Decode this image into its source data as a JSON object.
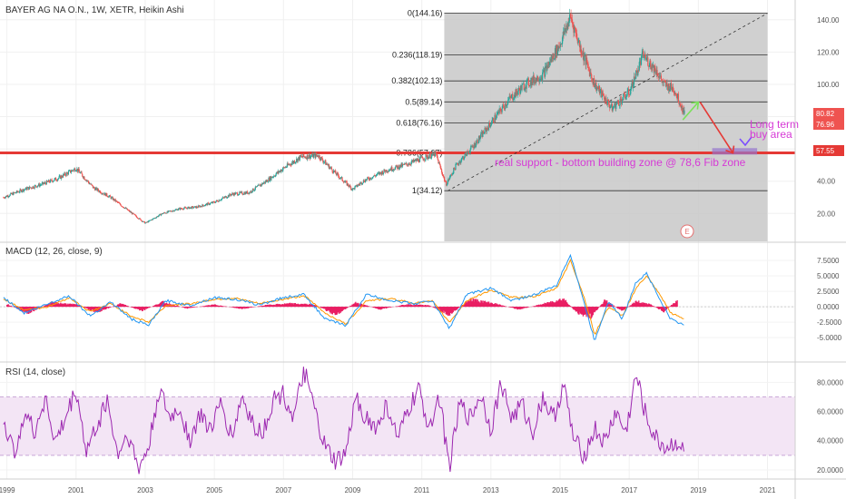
{
  "header": {
    "symbol_line": "BAYER AG NA O.N., 1W, XETR, Heikin Ashi",
    "macd_label": "MACD (12, 26, close, 9)",
    "rsi_label": "RSI (14, close)"
  },
  "colors": {
    "up": "#26a69a",
    "down": "#ef5350",
    "macd_line": "#2196f3",
    "signal_line": "#ff9800",
    "histogram": "#e91e63",
    "rsi_line": "#9c27b0",
    "rsi_band": "#f3e5f5",
    "support_line": "#e53935",
    "fib_zone": "#c8c8c8",
    "annotation": "#d63ad6"
  },
  "annotations": {
    "support_text": "real support - bottom building zone @ 78,6 Fib zone",
    "buy_area_line1": "Long term",
    "buy_area_line2": "buy area",
    "event_marker": "E"
  },
  "price_badges": {
    "last_price": "80.82",
    "second_price": "76.96",
    "support_price": "57.55"
  },
  "chart_data": [
    {
      "type": "candlestick",
      "title": "BAYER AG NA O.N., 1W, XETR, Heikin Ashi",
      "ylim": [
        5,
        150
      ],
      "y_ticks": [
        20,
        40,
        60,
        80,
        100,
        120,
        140
      ],
      "y_tick_labels": [
        "20.00",
        "40.00",
        "60.00",
        "80.00",
        "100.00",
        "120.00",
        "140.00"
      ],
      "x_ticks": [
        1999,
        2001,
        2003,
        2005,
        2007,
        2009,
        2011,
        2013,
        2015,
        2017,
        2019,
        2021
      ],
      "xlim": [
        1998.8,
        2021.8
      ],
      "price_path": {
        "x": [
          1998.9,
          1999.5,
          2000.0,
          2000.5,
          2001.0,
          2001.5,
          2002.0,
          2002.5,
          2003.0,
          2003.5,
          2004.0,
          2004.5,
          2005.0,
          2005.5,
          2006.0,
          2006.5,
          2007.0,
          2007.5,
          2008.0,
          2008.5,
          2009.0,
          2009.3,
          2009.7,
          2010.0,
          2010.5,
          2011.0,
          2011.4,
          2011.7,
          2012.0,
          2012.5,
          2013.0,
          2013.5,
          2014.0,
          2014.5,
          2015.0,
          2015.3,
          2015.6,
          2016.0,
          2016.5,
          2017.0,
          2017.4,
          2017.8,
          2018.0,
          2018.3,
          2018.6
        ],
        "y": [
          30,
          35,
          38,
          42,
          48,
          36,
          30,
          22,
          14,
          20,
          23,
          24,
          27,
          32,
          33,
          40,
          48,
          55,
          56,
          45,
          35,
          40,
          44,
          47,
          50,
          54,
          57,
          38,
          50,
          62,
          76,
          90,
          100,
          106,
          125,
          142,
          122,
          100,
          85,
          95,
          118,
          108,
          100,
          97,
          82
        ]
      },
      "fibonacci_levels": [
        {
          "ratio": "0",
          "price": 144.16
        },
        {
          "ratio": "0.236",
          "price": 118.19
        },
        {
          "ratio": "0.382",
          "price": 102.13
        },
        {
          "ratio": "0.5",
          "price": 89.14
        },
        {
          "ratio": "0.618",
          "price": 76.16
        },
        {
          "ratio": "0.786",
          "price": 57.67
        },
        {
          "ratio": "1",
          "price": 34.12
        }
      ],
      "fibonacci_labels": [
        "0(144.16)",
        "0.236(118.19)",
        "0.382(102.13)",
        "0.5(89.14)",
        "0.618(76.16)",
        "0.786(57.67)",
        "1(34.12)"
      ],
      "fib_range": [
        2011.65,
        2021.0
      ],
      "support_level": 57.55,
      "trendline": {
        "x": [
          2011.75,
          2021.0
        ],
        "y": [
          34.0,
          144.0
        ]
      },
      "projection_up": {
        "x": [
          2018.55,
          2019.0
        ],
        "y": [
          78,
          89
        ]
      },
      "projection_down": {
        "x": [
          2019.05,
          2020.0
        ],
        "y": [
          89,
          57.5
        ]
      },
      "buy_zone": {
        "x": [
          2019.4,
          2020.7
        ],
        "y": [
          56.5,
          60.5
        ]
      }
    },
    {
      "type": "line",
      "title": "MACD (12, 26, close, 9)",
      "ylim": [
        -8.5,
        10
      ],
      "y_ticks": [
        7.5,
        5,
        2.5,
        0,
        -2.5,
        -5
      ],
      "y_tick_labels": [
        "7.5000",
        "5.0000",
        "2.5000",
        "0.0000",
        "-2.5000",
        "-5.0000"
      ],
      "macd": {
        "x": [
          1998.9,
          1999.5,
          2000.2,
          2000.8,
          2001.4,
          2002.0,
          2002.6,
          2003.1,
          2003.6,
          2004.3,
          2005.0,
          2005.6,
          2006.3,
          2007.0,
          2007.6,
          2008.2,
          2008.8,
          2009.4,
          2010.1,
          2010.8,
          2011.3,
          2011.8,
          2012.3,
          2013.0,
          2013.6,
          2014.3,
          2014.9,
          2015.3,
          2015.7,
          2016.0,
          2016.4,
          2016.8,
          2017.2,
          2017.5,
          2017.9,
          2018.2,
          2018.6
        ],
        "y": [
          1.5,
          -1.0,
          0.5,
          1.8,
          -1.5,
          0.8,
          -2.0,
          -3.0,
          1.0,
          0.2,
          1.5,
          1.2,
          0.3,
          1.5,
          2.0,
          -2.0,
          -3.0,
          2.0,
          1.0,
          0.5,
          1.0,
          -3.5,
          2.0,
          3.0,
          1.0,
          2.0,
          3.5,
          8.5,
          0.5,
          -5.5,
          1.0,
          -2.0,
          4.0,
          5.5,
          1.0,
          -2.0,
          -3.0
        ]
      },
      "signal": {
        "x": [
          1998.9,
          1999.5,
          2000.2,
          2000.8,
          2001.4,
          2002.0,
          2002.6,
          2003.1,
          2003.6,
          2004.3,
          2005.0,
          2005.6,
          2006.3,
          2007.0,
          2007.6,
          2008.2,
          2008.8,
          2009.4,
          2010.1,
          2010.8,
          2011.3,
          2011.8,
          2012.3,
          2013.0,
          2013.6,
          2014.3,
          2014.9,
          2015.3,
          2015.7,
          2016.0,
          2016.4,
          2016.8,
          2017.2,
          2017.5,
          2017.9,
          2018.2,
          2018.6
        ],
        "y": [
          1.2,
          -0.5,
          0.0,
          1.5,
          -0.8,
          0.5,
          -1.5,
          -2.5,
          0.2,
          0.5,
          1.2,
          1.4,
          0.5,
          1.2,
          1.8,
          -1.0,
          -2.8,
          1.0,
          1.3,
          0.6,
          0.9,
          -2.5,
          1.0,
          2.7,
          1.5,
          1.7,
          3.0,
          7.5,
          1.5,
          -4.5,
          0.0,
          -1.5,
          3.0,
          5.0,
          1.8,
          -1.0,
          -2.0
        ]
      },
      "histogram": {
        "x": [
          1999.0,
          1999.6,
          2000.3,
          2001.0,
          2001.6,
          2002.3,
          2002.9,
          2003.5,
          2004.2,
          2005.0,
          2005.8,
          2006.5,
          2007.2,
          2007.9,
          2008.5,
          2009.1,
          2009.8,
          2010.5,
          2011.2,
          2011.8,
          2012.4,
          2013.1,
          2013.8,
          2014.5,
          2015.1,
          2015.5,
          2015.9,
          2016.3,
          2016.8,
          2017.2,
          2017.6,
          2018.0,
          2018.4
        ],
        "y": [
          0.5,
          -1.2,
          0.8,
          0.4,
          -1.0,
          0.6,
          -0.8,
          0.9,
          -0.3,
          0.4,
          -0.4,
          0.3,
          0.6,
          0.4,
          -1.5,
          0.8,
          -0.5,
          0.4,
          0.3,
          -1.5,
          1.4,
          0.6,
          -0.5,
          0.5,
          1.5,
          -1.2,
          -1.8,
          1.2,
          -0.8,
          1.0,
          0.5,
          -0.9,
          1.3
        ]
      }
    },
    {
      "type": "line",
      "title": "RSI (14, close)",
      "ylim": [
        15,
        92
      ],
      "y_ticks": [
        80,
        60,
        40,
        20
      ],
      "y_tick_labels": [
        "80.0000",
        "60.0000",
        "40.0000",
        "20.0000"
      ],
      "band": [
        30,
        70
      ],
      "rsi": {
        "x": [
          1998.9,
          1999.2,
          1999.5,
          1999.8,
          2000.1,
          2000.4,
          2000.7,
          2001.0,
          2001.3,
          2001.6,
          2001.9,
          2002.2,
          2002.5,
          2002.8,
          2003.1,
          2003.4,
          2003.7,
          2004.0,
          2004.3,
          2004.6,
          2004.9,
          2005.2,
          2005.5,
          2005.8,
          2006.1,
          2006.4,
          2006.7,
          2007.0,
          2007.3,
          2007.6,
          2007.9,
          2008.2,
          2008.5,
          2008.8,
          2009.1,
          2009.4,
          2009.7,
          2010.0,
          2010.3,
          2010.6,
          2010.9,
          2011.2,
          2011.5,
          2011.8,
          2012.1,
          2012.4,
          2012.7,
          2013.0,
          2013.3,
          2013.6,
          2013.9,
          2014.2,
          2014.5,
          2014.8,
          2015.1,
          2015.4,
          2015.7,
          2016.0,
          2016.3,
          2016.6,
          2016.9,
          2017.2,
          2017.5,
          2017.8,
          2018.1,
          2018.4,
          2018.6
        ],
        "y": [
          55,
          30,
          60,
          45,
          70,
          38,
          55,
          75,
          32,
          50,
          68,
          30,
          45,
          20,
          35,
          75,
          55,
          62,
          40,
          58,
          48,
          65,
          42,
          70,
          52,
          45,
          68,
          72,
          55,
          88,
          60,
          35,
          25,
          30,
          70,
          55,
          48,
          65,
          40,
          60,
          75,
          50,
          70,
          22,
          65,
          55,
          72,
          48,
          80,
          55,
          65,
          45,
          70,
          55,
          78,
          40,
          30,
          48,
          38,
          60,
          45,
          85,
          55,
          40,
          35,
          40,
          30
        ]
      }
    }
  ]
}
